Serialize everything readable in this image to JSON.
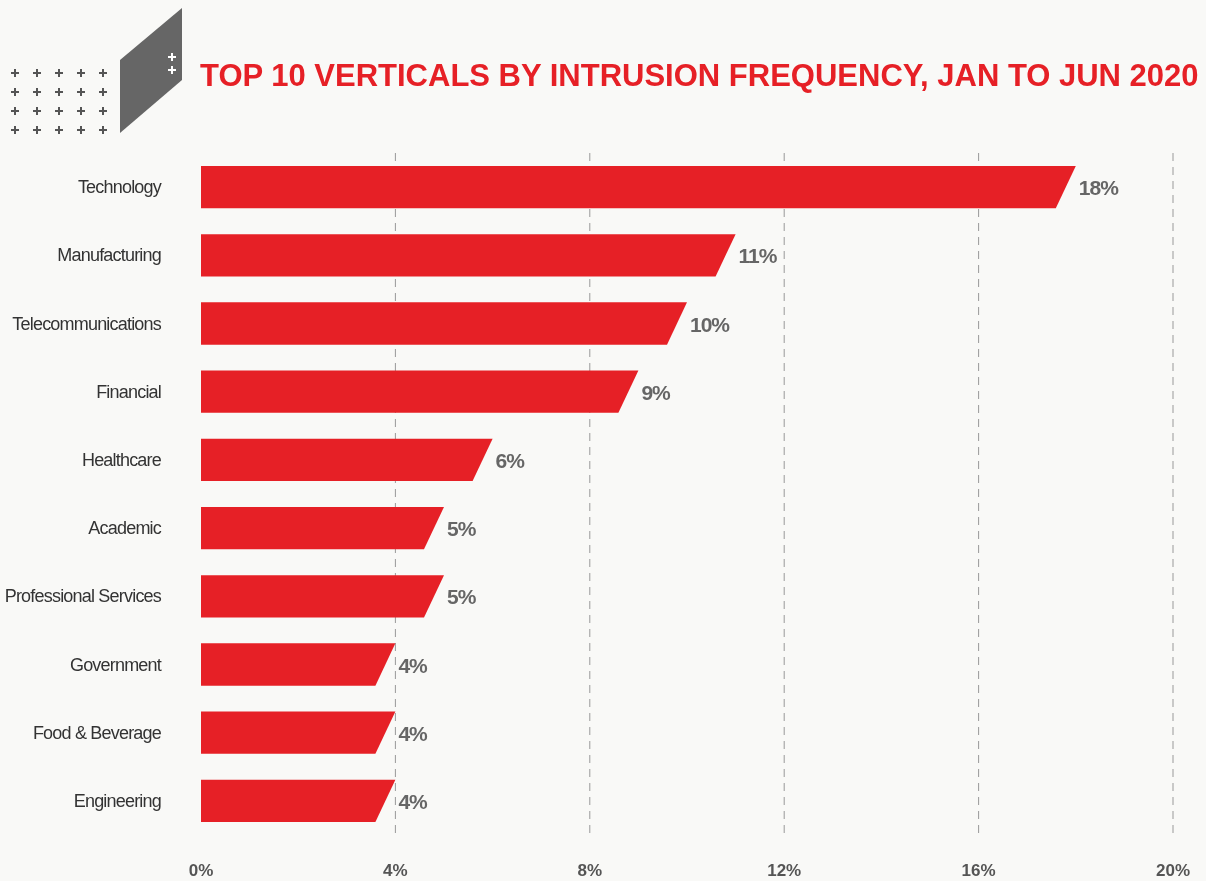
{
  "chart_data": {
    "type": "bar",
    "orientation": "horizontal",
    "title": "TOP 10 VERTICALS BY INTRUSION FREQUENCY, JAN TO JUN 2020",
    "categories": [
      "Technology",
      "Manufacturing",
      "Telecommunications",
      "Financial",
      "Healthcare",
      "Academic",
      "Professional Services",
      "Government",
      "Food & Beverage",
      "Engineering"
    ],
    "values": [
      18,
      11,
      10,
      9,
      6,
      5,
      5,
      4,
      4,
      4
    ],
    "value_labels": [
      "18%",
      "11%",
      "10%",
      "9%",
      "6%",
      "5%",
      "5%",
      "4%",
      "4%",
      "4%"
    ],
    "color": "#e62026",
    "xlim": [
      0,
      20
    ],
    "xticks": [
      {
        "value": 0,
        "label": "0%"
      },
      {
        "value": 4,
        "label": "4%"
      },
      {
        "value": 8,
        "label": "8%"
      },
      {
        "value": 12,
        "label": "12%"
      },
      {
        "value": 16,
        "label": "16%"
      },
      {
        "value": 20,
        "label": "20%"
      }
    ],
    "grid": "x"
  }
}
